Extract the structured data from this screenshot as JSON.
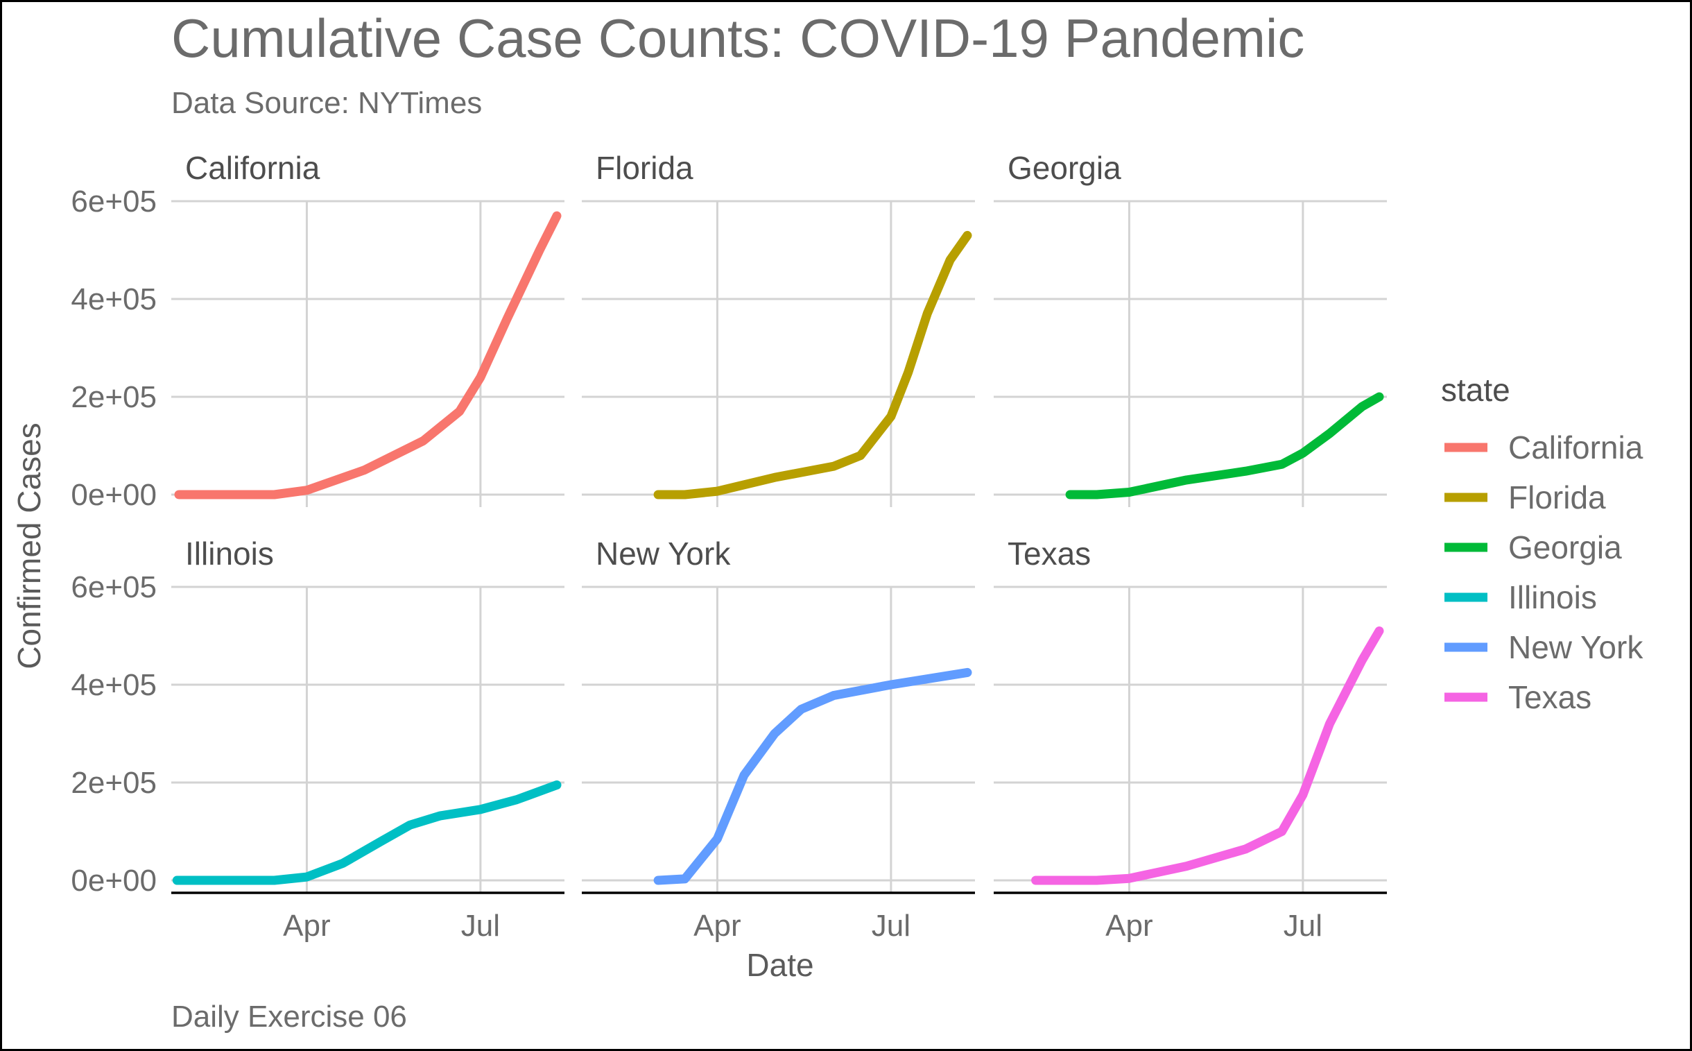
{
  "chart_data": {
    "type": "line",
    "title": "Cumulative Case Counts: COVID-19 Pandemic",
    "subtitle": "Data Source: NYTimes",
    "caption": "Daily Exercise 06",
    "xlabel": "Date",
    "ylabel": "Confirmed Cases",
    "ylim": [
      0,
      600000
    ],
    "y_ticks": [
      "0e+00",
      "2e+05",
      "4e+05",
      "6e+05"
    ],
    "x_ticks": [
      "Apr",
      "Jul"
    ],
    "grid": true,
    "legend": {
      "title": "state",
      "position": "right"
    },
    "facets": [
      "California",
      "Florida",
      "Georgia",
      "Illinois",
      "New York",
      "Texas"
    ],
    "colors": {
      "California": "#F8766D",
      "Florida": "#B79F00",
      "Georgia": "#00BA38",
      "Illinois": "#00BFC4",
      "New York": "#619CFF",
      "Texas": "#F564E3"
    },
    "series": [
      {
        "name": "California",
        "x": [
          "2020-01-25",
          "2020-03-15",
          "2020-04-01",
          "2020-05-01",
          "2020-06-01",
          "2020-06-20",
          "2020-07-01",
          "2020-07-15",
          "2020-08-01",
          "2020-08-10"
        ],
        "values": [
          0,
          0,
          9000,
          50000,
          110000,
          170000,
          240000,
          360000,
          500000,
          570000
        ]
      },
      {
        "name": "Florida",
        "x": [
          "2020-03-01",
          "2020-03-15",
          "2020-04-01",
          "2020-05-01",
          "2020-06-01",
          "2020-06-15",
          "2020-07-01",
          "2020-07-10",
          "2020-07-20",
          "2020-08-01",
          "2020-08-10"
        ],
        "values": [
          0,
          0,
          7000,
          35000,
          58000,
          80000,
          160000,
          250000,
          370000,
          480000,
          530000
        ]
      },
      {
        "name": "Georgia",
        "x": [
          "2020-03-01",
          "2020-03-15",
          "2020-04-01",
          "2020-05-01",
          "2020-06-01",
          "2020-06-20",
          "2020-07-01",
          "2020-07-15",
          "2020-08-01",
          "2020-08-10"
        ],
        "values": [
          0,
          0,
          5000,
          30000,
          48000,
          62000,
          85000,
          125000,
          180000,
          200000
        ]
      },
      {
        "name": "Illinois",
        "x": [
          "2020-01-24",
          "2020-03-15",
          "2020-04-01",
          "2020-04-20",
          "2020-05-10",
          "2020-05-25",
          "2020-06-10",
          "2020-07-01",
          "2020-07-20",
          "2020-08-10"
        ],
        "values": [
          0,
          0,
          7000,
          35000,
          80000,
          113000,
          132000,
          145000,
          165000,
          195000
        ]
      },
      {
        "name": "New York",
        "x": [
          "2020-03-01",
          "2020-03-15",
          "2020-04-01",
          "2020-04-15",
          "2020-05-01",
          "2020-05-15",
          "2020-06-01",
          "2020-07-01",
          "2020-08-10"
        ],
        "values": [
          0,
          3000,
          85000,
          215000,
          300000,
          350000,
          378000,
          400000,
          425000
        ]
      },
      {
        "name": "Texas",
        "x": [
          "2020-02-12",
          "2020-03-15",
          "2020-04-01",
          "2020-05-01",
          "2020-06-01",
          "2020-06-20",
          "2020-07-01",
          "2020-07-15",
          "2020-08-01",
          "2020-08-10"
        ],
        "values": [
          0,
          0,
          4000,
          29000,
          64000,
          100000,
          175000,
          320000,
          450000,
          510000
        ]
      }
    ]
  }
}
